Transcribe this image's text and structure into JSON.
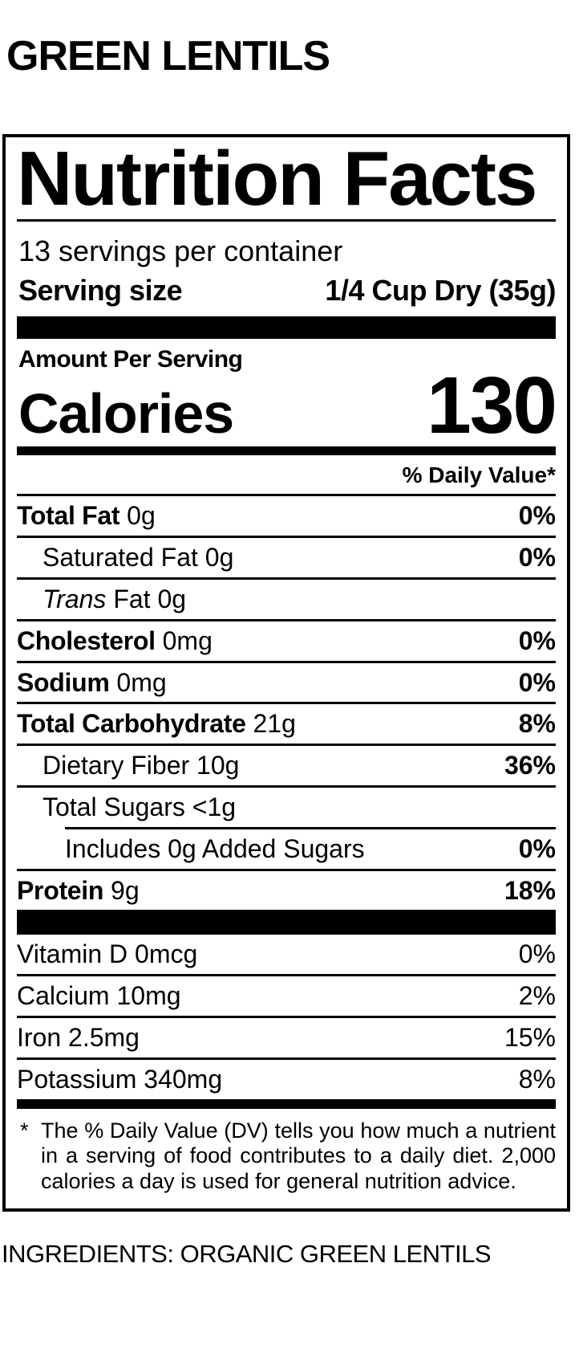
{
  "page": {
    "title": "GREEN LENTILS",
    "ingredients": "INGREDIENTS: ORGANIC GREEN LENTILS"
  },
  "colors": {
    "text": "#000000",
    "background": "#ffffff"
  },
  "label": {
    "title": "Nutrition Facts",
    "servings_per_container": "13 servings per container",
    "serving_size": {
      "label": "Serving size",
      "value": "1/4 Cup Dry (35g)"
    },
    "amount_per_serving": "Amount Per Serving",
    "calories": {
      "label": "Calories",
      "value": "130"
    },
    "daily_value_header": "% Daily Value*",
    "nutrients": [
      {
        "name": "Total Fat",
        "amount": "0g",
        "dv": "0%"
      },
      {
        "name": "Saturated Fat",
        "amount": "0g",
        "dv": "0%"
      },
      {
        "name_italic": "Trans",
        "name": "Fat",
        "amount": "0g",
        "dv": ""
      },
      {
        "name": "Cholesterol",
        "amount": "0mg",
        "dv": "0%"
      },
      {
        "name": "Sodium",
        "amount": "0mg",
        "dv": "0%"
      },
      {
        "name": "Total Carbohydrate",
        "amount": "21g",
        "dv": "8%"
      },
      {
        "name": "Dietary Fiber",
        "amount": "10g",
        "dv": "36%"
      },
      {
        "name": "Total Sugars",
        "amount": "<1g",
        "dv": ""
      },
      {
        "name": "Includes 0g Added Sugars",
        "amount": "",
        "dv": "0%"
      },
      {
        "name": "Protein",
        "amount": "9g",
        "dv": "18%"
      }
    ],
    "micronutrients": [
      {
        "name": "Vitamin D",
        "amount": "0mcg",
        "dv": "0%"
      },
      {
        "name": "Calcium",
        "amount": "10mg",
        "dv": "2%"
      },
      {
        "name": "Iron",
        "amount": "2.5mg",
        "dv": "15%"
      },
      {
        "name": "Potassium",
        "amount": "340mg",
        "dv": "8%"
      }
    ],
    "footnote": {
      "marker": "*",
      "text": "The % Daily Value (DV) tells you how much a nutrient in a serving of food contributes to a daily diet. 2,000 calories a day is used for general nutrition advice."
    }
  }
}
